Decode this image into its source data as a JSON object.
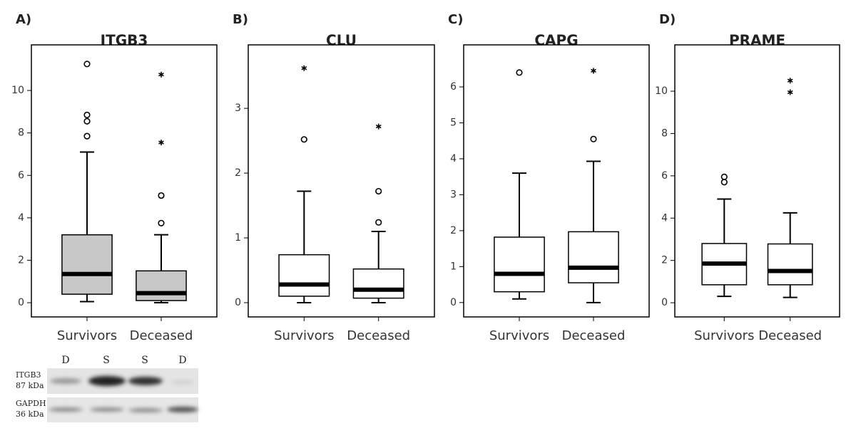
{
  "chart_data": [
    {
      "type": "box",
      "panel": "A)",
      "title": "ITGB3",
      "categories": [
        "Survivors",
        "Deceased"
      ],
      "color": "#c8c8c8",
      "ylim": [
        -0.67,
        12.15
      ],
      "yticks": [
        0,
        2,
        4,
        6,
        8,
        10
      ],
      "boxes": [
        {
          "min": 0.05,
          "q1": 0.4,
          "median": 1.35,
          "q3": 3.2,
          "max": 7.1,
          "outliers": [
            7.85,
            8.55,
            8.85,
            11.25
          ],
          "extremes": []
        },
        {
          "min": 0,
          "q1": 0.1,
          "median": 0.45,
          "q3": 1.5,
          "max": 3.2,
          "outliers": [
            3.75,
            5.05
          ],
          "extremes": [
            7.55,
            10.75
          ]
        }
      ]
    },
    {
      "type": "box",
      "panel": "B)",
      "title": "CLU",
      "categories": [
        "Survivors",
        "Deceased"
      ],
      "color": "#ffffff",
      "ylim": [
        -0.22,
        3.98
      ],
      "yticks": [
        0,
        1,
        2,
        3
      ],
      "boxes": [
        {
          "min": 0,
          "q1": 0.1,
          "median": 0.28,
          "q3": 0.74,
          "max": 1.72,
          "outliers": [
            2.52
          ],
          "extremes": [
            3.62
          ]
        },
        {
          "min": 0,
          "q1": 0.07,
          "median": 0.2,
          "q3": 0.52,
          "max": 1.1,
          "outliers": [
            1.24,
            1.72
          ],
          "extremes": [
            2.72
          ]
        }
      ]
    },
    {
      "type": "box",
      "panel": "C)",
      "title": "CAPG",
      "categories": [
        "Survivors",
        "Deceased"
      ],
      "color": "#ffffff",
      "ylim": [
        -0.4,
        7.17
      ],
      "yticks": [
        0,
        1,
        2,
        3,
        4,
        5,
        6
      ],
      "boxes": [
        {
          "min": 0.1,
          "q1": 0.3,
          "median": 0.8,
          "q3": 1.82,
          "max": 3.6,
          "outliers": [
            6.4
          ],
          "extremes": []
        },
        {
          "min": 0,
          "q1": 0.55,
          "median": 0.97,
          "q3": 1.97,
          "max": 3.93,
          "outliers": [
            4.55
          ],
          "extremes": [
            6.45
          ]
        }
      ]
    },
    {
      "type": "box",
      "panel": "D)",
      "title": "PRAME",
      "categories": [
        "Survivors",
        "Deceased"
      ],
      "color": "#ffffff",
      "ylim": [
        -0.67,
        12.19
      ],
      "yticks": [
        0,
        2,
        4,
        6,
        8,
        10
      ],
      "boxes": [
        {
          "min": 0.3,
          "q1": 0.85,
          "median": 1.85,
          "q3": 2.8,
          "max": 4.9,
          "outliers": [
            5.7,
            5.95
          ],
          "extremes": []
        },
        {
          "min": 0.25,
          "q1": 0.85,
          "median": 1.5,
          "q3": 2.78,
          "max": 4.25,
          "outliers": [],
          "extremes": [
            9.95,
            10.5
          ]
        }
      ]
    }
  ],
  "blot": {
    "lanes": [
      "D",
      "S",
      "S",
      "D"
    ],
    "rows": [
      {
        "name": "ITGB3",
        "size": "87 kDa"
      },
      {
        "name": "GAPDH",
        "size": "36 kDa"
      }
    ]
  }
}
